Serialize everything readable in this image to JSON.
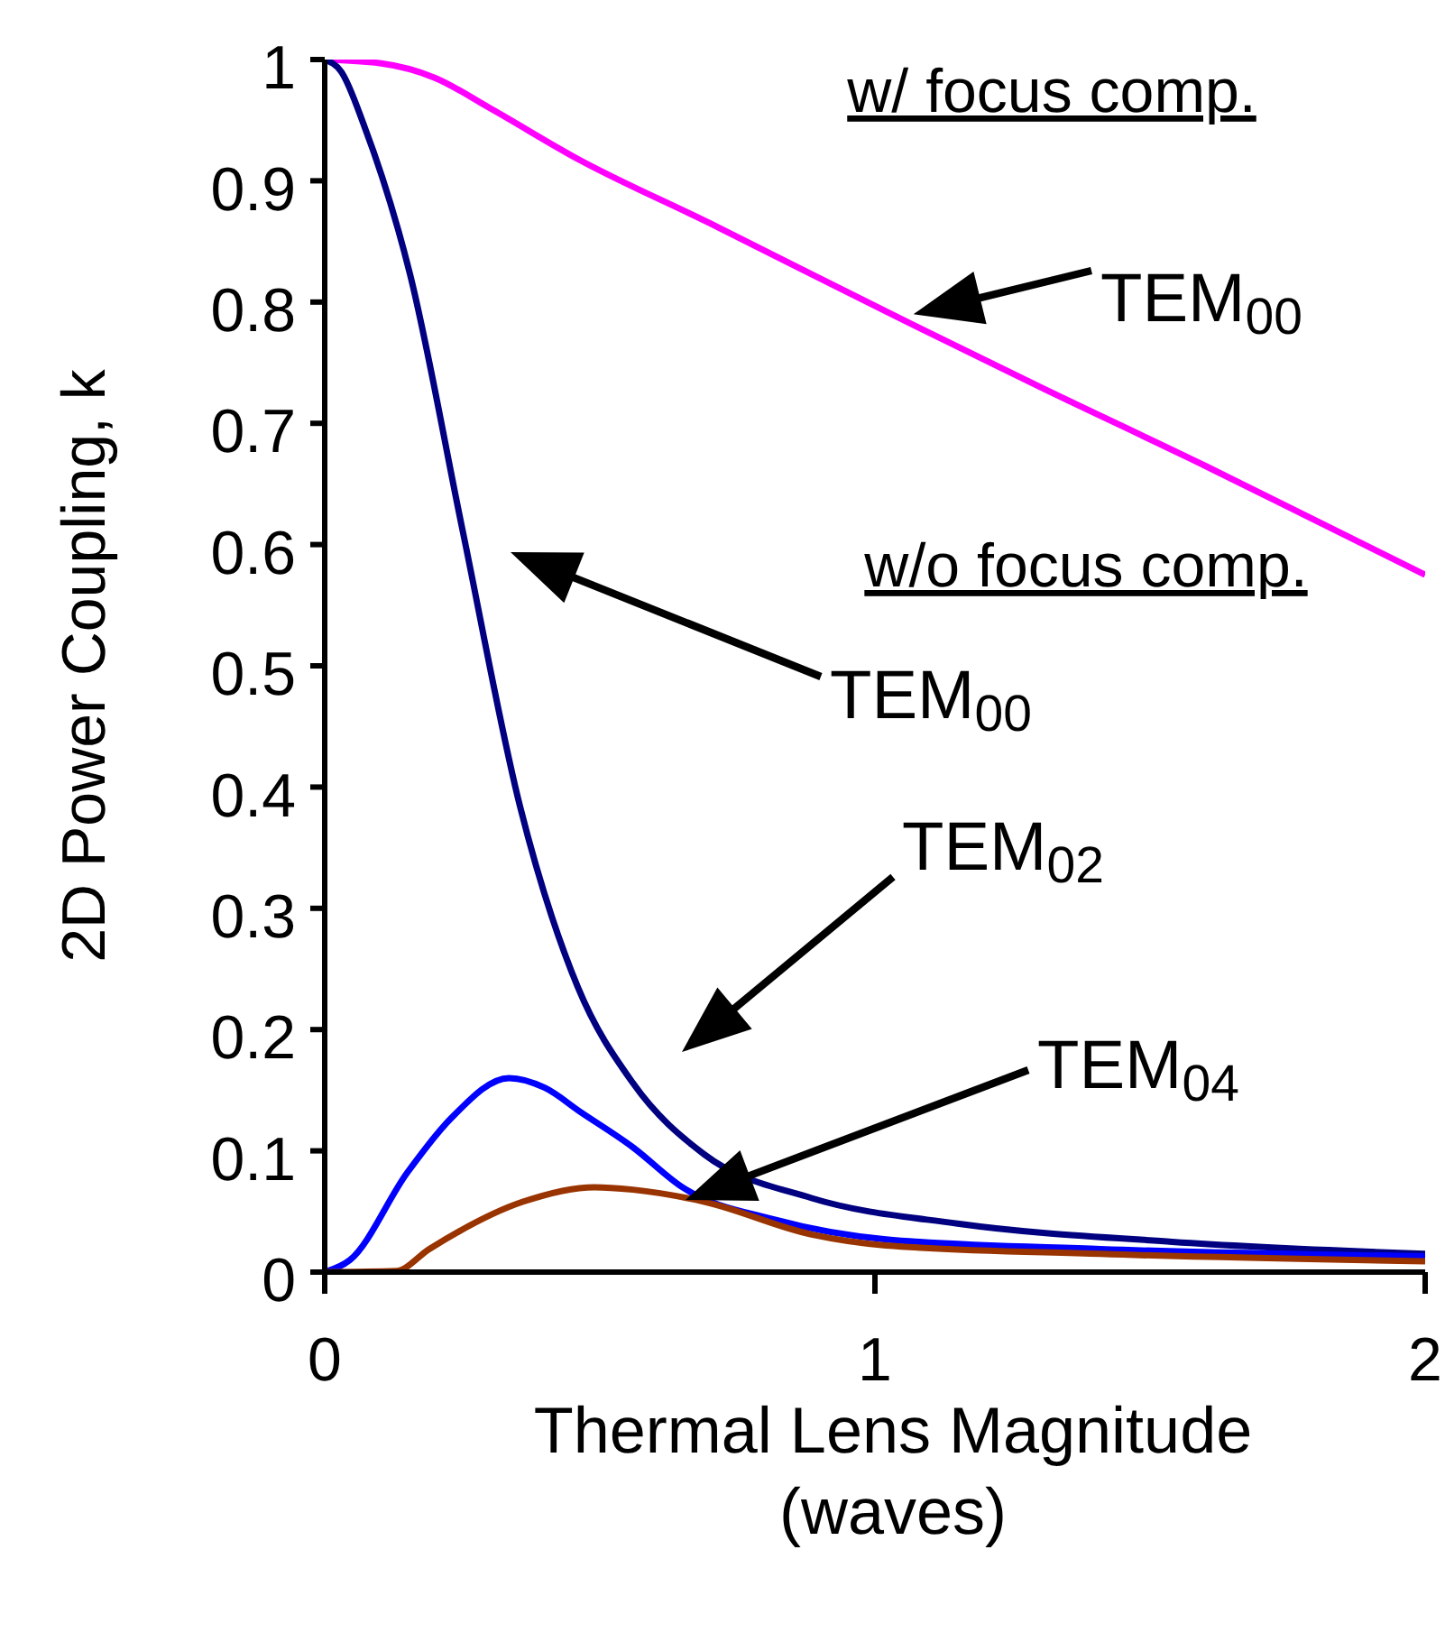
{
  "chart_data": {
    "type": "line",
    "xlabel": "Thermal Lens Magnitude (waves)",
    "ylabel": "2D Power Coupling, k",
    "xlim": [
      0,
      2
    ],
    "xticks": [
      0,
      1,
      2
    ],
    "ylim": [
      0,
      1
    ],
    "yticks": [
      0,
      0.1,
      0.2,
      0.3,
      0.4,
      0.5,
      0.6,
      0.7,
      0.8,
      0.9,
      1
    ],
    "grid": false,
    "legend": false,
    "marker": "none",
    "line_style": "solid",
    "series": [
      {
        "color": "#ff00ff",
        "x": [
          0,
          0.1,
          0.2,
          0.3,
          0.46,
          0.7,
          1.03,
          1.3,
          1.6,
          1.8,
          2
        ],
        "values": [
          1,
          0.997,
          0.985,
          0.96,
          0.918,
          0.865,
          0.79,
          0.73,
          0.665,
          0.62,
          0.575
        ]
      },
      {
        "color": "#000080",
        "x": [
          0,
          0.03,
          0.072,
          0.155,
          0.25,
          0.355,
          0.46,
          0.56,
          0.69,
          0.885,
          1.15,
          1.54,
          2
        ],
        "values": [
          1,
          0.99,
          0.945,
          0.823,
          0.613,
          0.384,
          0.235,
          0.156,
          0.097,
          0.061,
          0.04,
          0.025,
          0.015
        ]
      },
      {
        "color": "#0000ff",
        "x": [
          0,
          0.046,
          0.15,
          0.23,
          0.335,
          0.4,
          0.465,
          0.56,
          0.65,
          0.82,
          1.02,
          1.41,
          2
        ],
        "values": [
          0,
          0.01,
          0.082,
          0.127,
          0.16,
          0.152,
          0.132,
          0.103,
          0.07,
          0.043,
          0.027,
          0.019,
          0.013
        ]
      },
      {
        "color": "#993300",
        "x": [
          0,
          0.13,
          0.19,
          0.36,
          0.49,
          0.56,
          0.69,
          0.885,
          1.02,
          1.41,
          2
        ],
        "values": [
          0,
          0.001,
          0.019,
          0.058,
          0.07,
          0.068,
          0.058,
          0.031,
          0.022,
          0.015,
          0.009
        ]
      }
    ],
    "annotations": [
      "w/ focus comp.",
      "w/o focus comp.",
      {
        "text": "TEM$_{00}$",
        "x": 1.07,
        "y": 0.79
      },
      "TEM$_{00}$",
      "TEM$_{02}$",
      "TEM$_{04}$"
    ]
  }
}
